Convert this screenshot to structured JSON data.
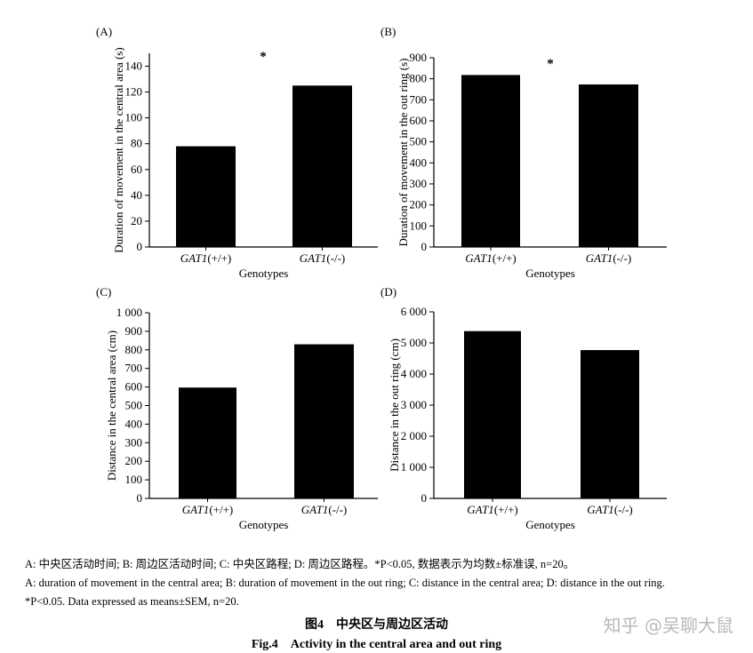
{
  "chart_data": [
    {
      "type": "bar",
      "panel": "(A)",
      "categories": [
        "GAT1(+/+)",
        "GAT1(-/-)"
      ],
      "category_italic": [
        "GAT1",
        "GAT1"
      ],
      "category_suffix": [
        "(+/+)",
        "(-/-)"
      ],
      "values": [
        78,
        125
      ],
      "xlabel": "Genotypes",
      "ylabel": "Duration of movement in the central area (s)",
      "ylim": [
        0,
        150
      ],
      "yticks": [
        0,
        20,
        40,
        60,
        80,
        100,
        120,
        140
      ],
      "ytick_labels": [
        "0",
        "20",
        "40",
        "60",
        "80",
        "100",
        "120",
        "140"
      ],
      "annotation": "*",
      "grid": false
    },
    {
      "type": "bar",
      "panel": "(B)",
      "categories": [
        "GAT1(+/+)",
        "GAT1(-/-)"
      ],
      "category_italic": [
        "GAT1",
        "GAT1"
      ],
      "category_suffix": [
        "(+/+)",
        "(-/-)"
      ],
      "values": [
        818,
        773
      ],
      "xlabel": "Genotypes",
      "ylabel": "Duration of movement in the out ring (s)",
      "ylim": [
        0,
        900
      ],
      "yticks": [
        0,
        100,
        200,
        300,
        400,
        500,
        600,
        700,
        800,
        900
      ],
      "ytick_labels": [
        "0",
        "100",
        "200",
        "300",
        "400",
        "500",
        "600",
        "700",
        "800",
        "900"
      ],
      "annotation": "*",
      "grid": false
    },
    {
      "type": "bar",
      "panel": "(C)",
      "categories": [
        "GAT1(+/+)",
        "GAT1(-/-)"
      ],
      "category_italic": [
        "GAT1",
        "GAT1"
      ],
      "category_suffix": [
        "(+/+)",
        "(-/-)"
      ],
      "values": [
        597,
        830
      ],
      "xlabel": "Genotypes",
      "ylabel": "Distance in the central area (cm)",
      "ylim": [
        0,
        1000
      ],
      "yticks": [
        0,
        100,
        200,
        300,
        400,
        500,
        600,
        700,
        800,
        900,
        1000
      ],
      "ytick_labels": [
        "0",
        "100",
        "200",
        "300",
        "400",
        "500",
        "600",
        "700",
        "800",
        "900",
        "1 000"
      ],
      "annotation": "",
      "grid": false
    },
    {
      "type": "bar",
      "panel": "(D)",
      "categories": [
        "GAT1(+/+)",
        "GAT1(-/-)"
      ],
      "category_italic": [
        "GAT1",
        "GAT1"
      ],
      "category_suffix": [
        "(+/+)",
        "(-/-)"
      ],
      "values": [
        5380,
        4770
      ],
      "xlabel": "Genotypes",
      "ylabel": "Distance in the out ring (cm)",
      "ylim": [
        0,
        6000
      ],
      "yticks": [
        0,
        1000,
        2000,
        3000,
        4000,
        5000,
        6000
      ],
      "ytick_labels": [
        "0",
        "1 000",
        "2 000",
        "3 000",
        "4 000",
        "5 000",
        "6 000"
      ],
      "annotation": "",
      "grid": false
    }
  ],
  "caption": {
    "cn": "A: 中央区活动时间; B: 周边区活动时间; C: 中央区路程; D: 周边区路程。*P<0.05, 数据表示为均数±标准误, n=20。",
    "en1": "A: duration of movement in the central area; B: duration of movement in the out ring; C: distance in the central area; D: distance in the out ring.",
    "en2": "*P<0.05. Data expressed as means±SEM, n=20."
  },
  "figure_title_cn": "图4　中央区与周边区活动",
  "figure_title_en": "Fig.4　Activity in the central area and out ring",
  "watermark": "知乎 @吴聊大鼠",
  "colors": {
    "bar": "#000000",
    "axis": "#000000",
    "background": "#ffffff"
  }
}
